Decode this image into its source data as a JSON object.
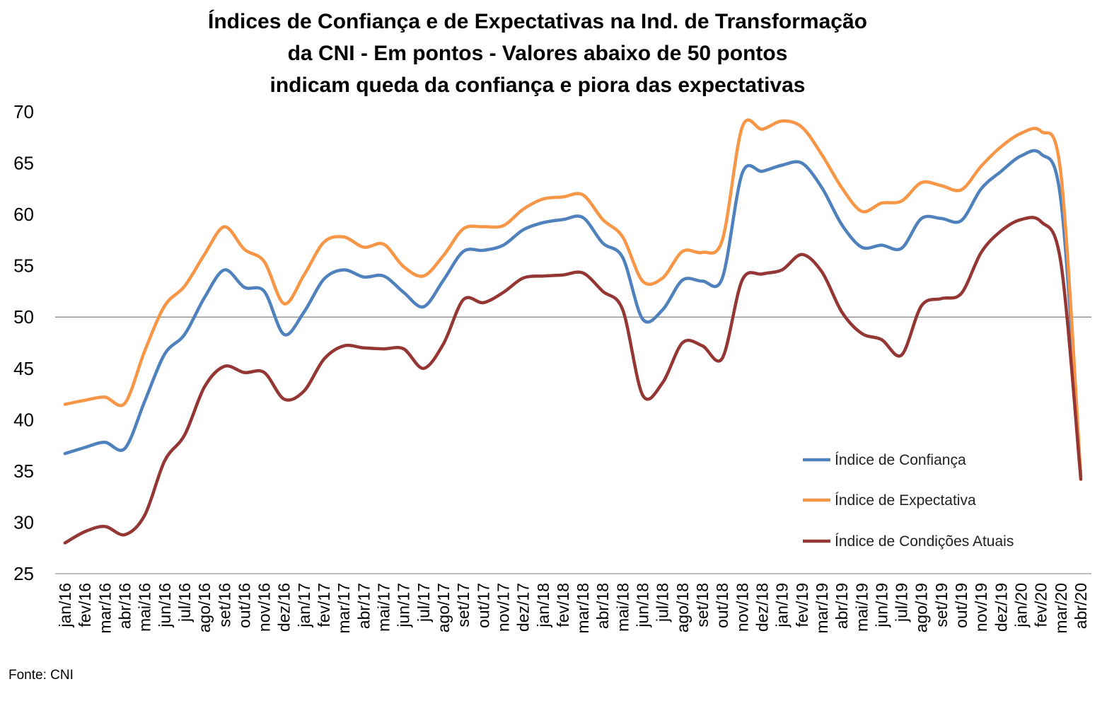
{
  "chart_data": {
    "type": "line",
    "title": [
      "Índices de Confiança e de Expectativas na Ind. de Transformação",
      "da CNI - Em pontos - Valores abaixo de 50 pontos",
      "indicam queda da confiança e piora das expectativas"
    ],
    "xlabel": "",
    "ylabel": "",
    "ylim": [
      25,
      70
    ],
    "yticks": [
      "70",
      "65",
      "60",
      "55",
      "50",
      "45",
      "40",
      "35",
      "30",
      "25"
    ],
    "reference_line": 50,
    "grid": false,
    "legend_position": "right",
    "categories": [
      "jan/16",
      "fev/16",
      "mar/16",
      "abr/16",
      "mai/16",
      "jun/16",
      "jul/16",
      "ago/16",
      "set/16",
      "out/16",
      "nov/16",
      "dez/16",
      "jan/17",
      "fev/17",
      "mar/17",
      "abr/17",
      "mai/17",
      "jun/17",
      "jul/17",
      "ago/17",
      "set/17",
      "out/17",
      "nov/17",
      "dez/17",
      "jan/18",
      "fev/18",
      "mar/18",
      "abr/18",
      "mai/18",
      "jun/18",
      "jul/18",
      "ago/18",
      "set/18",
      "out/18",
      "nov/18",
      "dez/18",
      "jan/19",
      "fev/19",
      "mar/19",
      "abr/19",
      "mai/19",
      "jun/19",
      "jul/19",
      "ago/19",
      "set/19",
      "out/19",
      "nov/19",
      "dez/19",
      "jan/20",
      "fev/20",
      "mar/20",
      "abr/20"
    ],
    "series": [
      {
        "name": "Índice de Confiança",
        "color": "#4f81bd",
        "values": [
          36.7,
          37.3,
          37.8,
          37.2,
          41.8,
          46.4,
          48.3,
          51.9,
          54.6,
          52.9,
          52.5,
          48.3,
          50.5,
          53.7,
          54.6,
          53.9,
          54.0,
          52.4,
          51.0,
          53.6,
          56.4,
          56.5,
          57.0,
          58.5,
          59.2,
          59.5,
          59.7,
          57.2,
          55.8,
          49.8,
          50.7,
          53.6,
          53.5,
          53.8,
          64.0,
          64.2,
          64.8,
          65.0,
          62.6,
          59.0,
          56.8,
          57.0,
          56.7,
          59.6,
          59.6,
          59.4,
          62.5,
          64.2,
          65.7,
          65.9,
          61.4,
          34.5
        ]
      },
      {
        "name": "Índice de Expectativa",
        "color": "#f79646",
        "values": [
          41.5,
          41.9,
          42.2,
          41.6,
          46.7,
          51.1,
          53.0,
          56.1,
          58.8,
          56.6,
          55.4,
          51.3,
          54.1,
          57.3,
          57.8,
          56.8,
          57.1,
          54.9,
          54.0,
          56.0,
          58.6,
          58.8,
          58.9,
          60.5,
          61.5,
          61.7,
          61.9,
          59.5,
          57.8,
          53.5,
          53.8,
          56.4,
          56.3,
          57.5,
          68.5,
          68.3,
          69.1,
          68.5,
          65.8,
          62.6,
          60.3,
          61.1,
          61.3,
          63.1,
          62.8,
          62.4,
          64.7,
          66.6,
          67.9,
          68.1,
          64.0,
          34.5
        ]
      },
      {
        "name": "Índice de Condições Atuais",
        "color": "#943634",
        "values": [
          28.0,
          29.1,
          29.6,
          28.8,
          30.7,
          36.0,
          38.5,
          43.2,
          45.2,
          44.6,
          44.6,
          42.0,
          42.8,
          45.9,
          47.2,
          47.0,
          46.9,
          46.9,
          45.0,
          47.4,
          51.7,
          51.4,
          52.4,
          53.8,
          54.0,
          54.1,
          54.3,
          52.5,
          50.7,
          42.4,
          43.6,
          47.5,
          47.2,
          46.0,
          53.6,
          54.2,
          54.6,
          56.1,
          54.4,
          50.5,
          48.4,
          47.8,
          46.3,
          51.1,
          51.8,
          52.3,
          56.3,
          58.4,
          59.5,
          59.3,
          55.3,
          34.2
        ]
      }
    ],
    "source": "Fonte: CNI"
  }
}
